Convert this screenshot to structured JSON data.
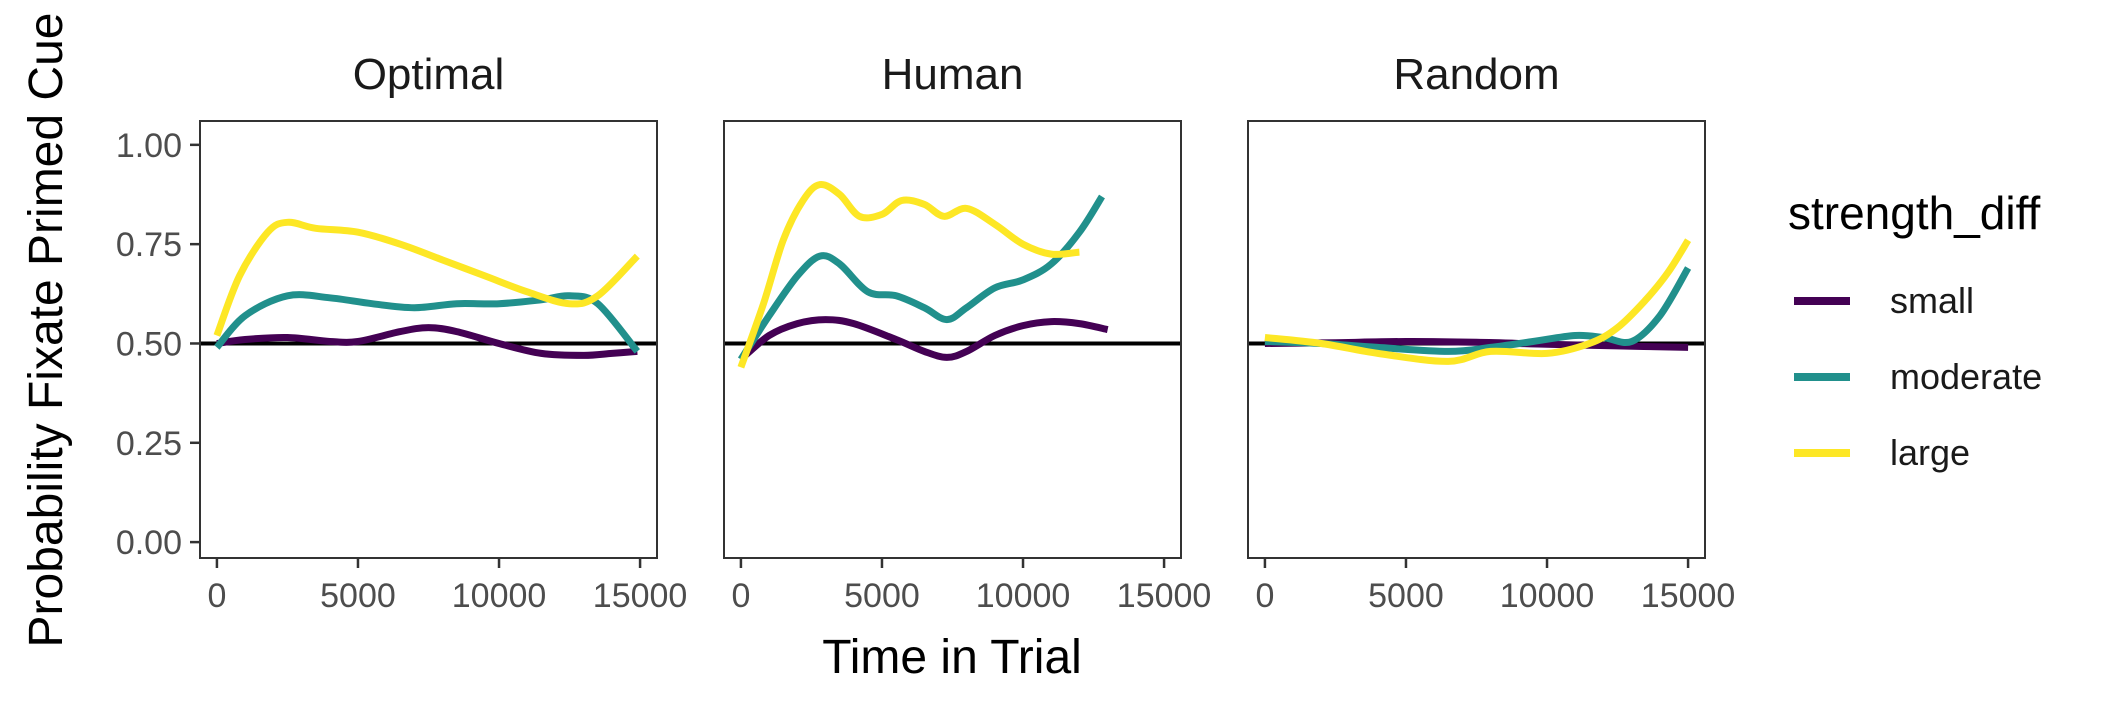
{
  "chart_data": {
    "type": "line",
    "xlabel": "Time in Trial",
    "ylabel": "Probability Fixate Primed Cue",
    "xlim": [
      -600,
      15600
    ],
    "ylim": [
      -0.04,
      1.06
    ],
    "x_ticks": [
      0,
      5000,
      10000,
      15000
    ],
    "x_tick_labels": [
      "0",
      "5000",
      "10000",
      "15000"
    ],
    "y_ticks": [
      0.0,
      0.25,
      0.5,
      0.75,
      1.0
    ],
    "y_tick_labels": [
      "0.00",
      "0.25",
      "0.50",
      "0.75",
      "1.00"
    ],
    "reference_line": 0.5,
    "grid": false,
    "legend": {
      "title": "strength_diff",
      "position": "right",
      "entries": [
        {
          "label": "small",
          "color": "#440154"
        },
        {
          "label": "moderate",
          "color": "#21908C"
        },
        {
          "label": "large",
          "color": "#FDE725"
        }
      ]
    },
    "panels": [
      {
        "title": "Optimal",
        "series": [
          {
            "name": "small",
            "color": "#440154",
            "x": [
              0,
              1000,
              2500,
              4000,
              5000,
              6500,
              7500,
              8500,
              10000,
              11500,
              13000,
              14000,
              14900
            ],
            "y": [
              0.5,
              0.51,
              0.515,
              0.505,
              0.505,
              0.53,
              0.54,
              0.53,
              0.5,
              0.475,
              0.47,
              0.475,
              0.48
            ]
          },
          {
            "name": "moderate",
            "color": "#21908C",
            "x": [
              0,
              1000,
              2500,
              4000,
              5500,
              7000,
              8500,
              10000,
              11500,
              12500,
              13500,
              14900
            ],
            "y": [
              0.49,
              0.57,
              0.62,
              0.615,
              0.6,
              0.59,
              0.6,
              0.6,
              0.61,
              0.62,
              0.6,
              0.48
            ]
          },
          {
            "name": "large",
            "color": "#FDE725",
            "x": [
              0,
              800,
              1800,
              2500,
              3500,
              5000,
              6500,
              8000,
              9500,
              11000,
              12500,
              13500,
              14900
            ],
            "y": [
              0.52,
              0.67,
              0.78,
              0.805,
              0.79,
              0.78,
              0.75,
              0.71,
              0.67,
              0.63,
              0.6,
              0.62,
              0.72
            ]
          }
        ]
      },
      {
        "title": "Human",
        "series": [
          {
            "name": "small",
            "color": "#440154",
            "x": [
              0,
              1000,
              2000,
              3000,
              4000,
              5500,
              6500,
              7300,
              8000,
              9000,
              10000,
              11000,
              12000,
              13000
            ],
            "y": [
              0.46,
              0.52,
              0.55,
              0.56,
              0.55,
              0.51,
              0.48,
              0.465,
              0.48,
              0.52,
              0.545,
              0.555,
              0.55,
              0.535
            ]
          },
          {
            "name": "moderate",
            "color": "#21908C",
            "x": [
              0,
              1000,
              2000,
              2800,
              3500,
              4500,
              5500,
              6500,
              7300,
              8000,
              9000,
              10000,
              11000,
              12000,
              12800
            ],
            "y": [
              0.46,
              0.57,
              0.67,
              0.72,
              0.7,
              0.63,
              0.62,
              0.59,
              0.56,
              0.59,
              0.64,
              0.66,
              0.7,
              0.78,
              0.87
            ]
          },
          {
            "name": "large",
            "color": "#FDE725",
            "x": [
              0,
              800,
              1500,
              2200,
              2800,
              3500,
              4200,
              5000,
              5700,
              6500,
              7200,
              8000,
              9000,
              10000,
              11000,
              12000
            ],
            "y": [
              0.44,
              0.6,
              0.76,
              0.86,
              0.9,
              0.875,
              0.82,
              0.825,
              0.86,
              0.85,
              0.82,
              0.84,
              0.8,
              0.75,
              0.725,
              0.73
            ]
          }
        ]
      },
      {
        "title": "Random",
        "series": [
          {
            "name": "small",
            "color": "#440154",
            "x": [
              0,
              2500,
              5000,
              7500,
              10000,
              12500,
              15000
            ],
            "y": [
              0.5,
              0.502,
              0.505,
              0.503,
              0.498,
              0.494,
              0.49
            ]
          },
          {
            "name": "moderate",
            "color": "#21908C",
            "x": [
              0,
              2000,
              4000,
              6500,
              8000,
              9500,
              11000,
              12000,
              13000,
              14000,
              15000
            ],
            "y": [
              0.505,
              0.5,
              0.49,
              0.48,
              0.49,
              0.505,
              0.52,
              0.515,
              0.505,
              0.57,
              0.69
            ]
          },
          {
            "name": "large",
            "color": "#FDE725",
            "x": [
              0,
              2000,
              4000,
              6500,
              8000,
              10000,
              11500,
              12500,
              13500,
              14300,
              15000
            ],
            "y": [
              0.515,
              0.5,
              0.475,
              0.455,
              0.48,
              0.475,
              0.5,
              0.54,
              0.61,
              0.68,
              0.76
            ]
          }
        ]
      }
    ]
  }
}
